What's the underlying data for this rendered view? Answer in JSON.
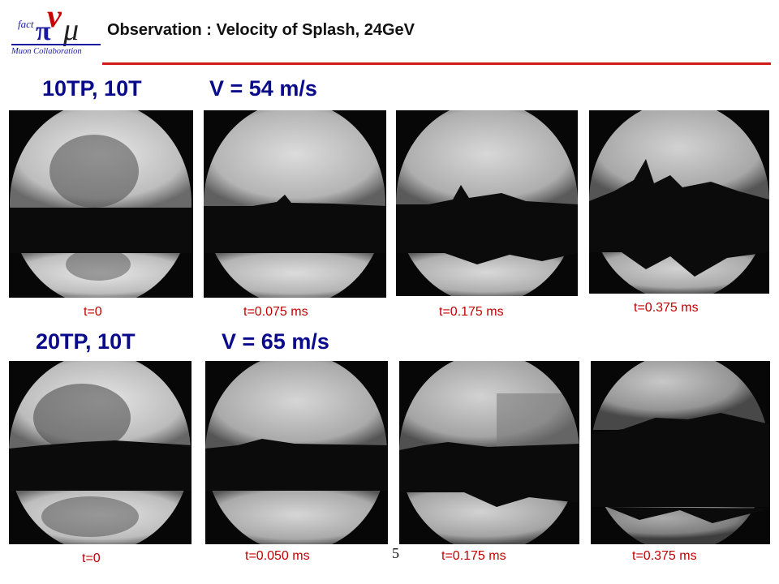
{
  "header": {
    "title": "Observation : Velocity of Splash, 24GeV",
    "logo": {
      "fact": "fact",
      "nu": "ν",
      "pi": "π",
      "mu": "μ",
      "collaboration": "Muon Collaboration"
    }
  },
  "rows": [
    {
      "config": "10TP, 10T",
      "velocity": "V = 54 m/s",
      "frames": [
        {
          "time": "t=0"
        },
        {
          "time": "t=0.075 ms"
        },
        {
          "time": "t=0.175 ms"
        },
        {
          "time": "t=0.375 ms"
        }
      ]
    },
    {
      "config": "20TP, 10T",
      "velocity": "V = 65 m/s",
      "frames": [
        {
          "time": "t=0"
        },
        {
          "time": "t=0.050 ms"
        },
        {
          "time": "t=0.175 ms"
        },
        {
          "time": "t=0.375 ms"
        }
      ]
    }
  ],
  "page_number": "5",
  "colors": {
    "accent_rule": "#d11a1a",
    "label_blue": "#0a0a8c",
    "time_red": "#c20000"
  }
}
